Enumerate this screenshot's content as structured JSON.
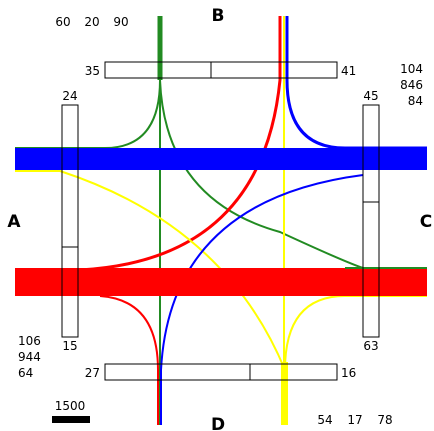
{
  "directions": {
    "north": "B",
    "west": "A",
    "east": "C",
    "south": "D"
  },
  "top_counts": [
    "60",
    "20",
    "90"
  ],
  "top_bar": {
    "left": "35",
    "right": "41"
  },
  "right_counts": [
    "104",
    "846",
    "84"
  ],
  "right_bar": {
    "top": "45",
    "bottom": "63"
  },
  "left_bar": {
    "top": "24",
    "bottom": "15"
  },
  "left_counts": [
    "106",
    "944",
    "64"
  ],
  "bottom_bar": {
    "left": "27",
    "right": "16"
  },
  "bottom_counts": [
    "54",
    "17",
    "78"
  ],
  "scale_label": "1500",
  "colors": {
    "green": "#228b22",
    "red": "#ff0000",
    "blue": "#0000ff",
    "yellow": "#ffff00"
  }
}
